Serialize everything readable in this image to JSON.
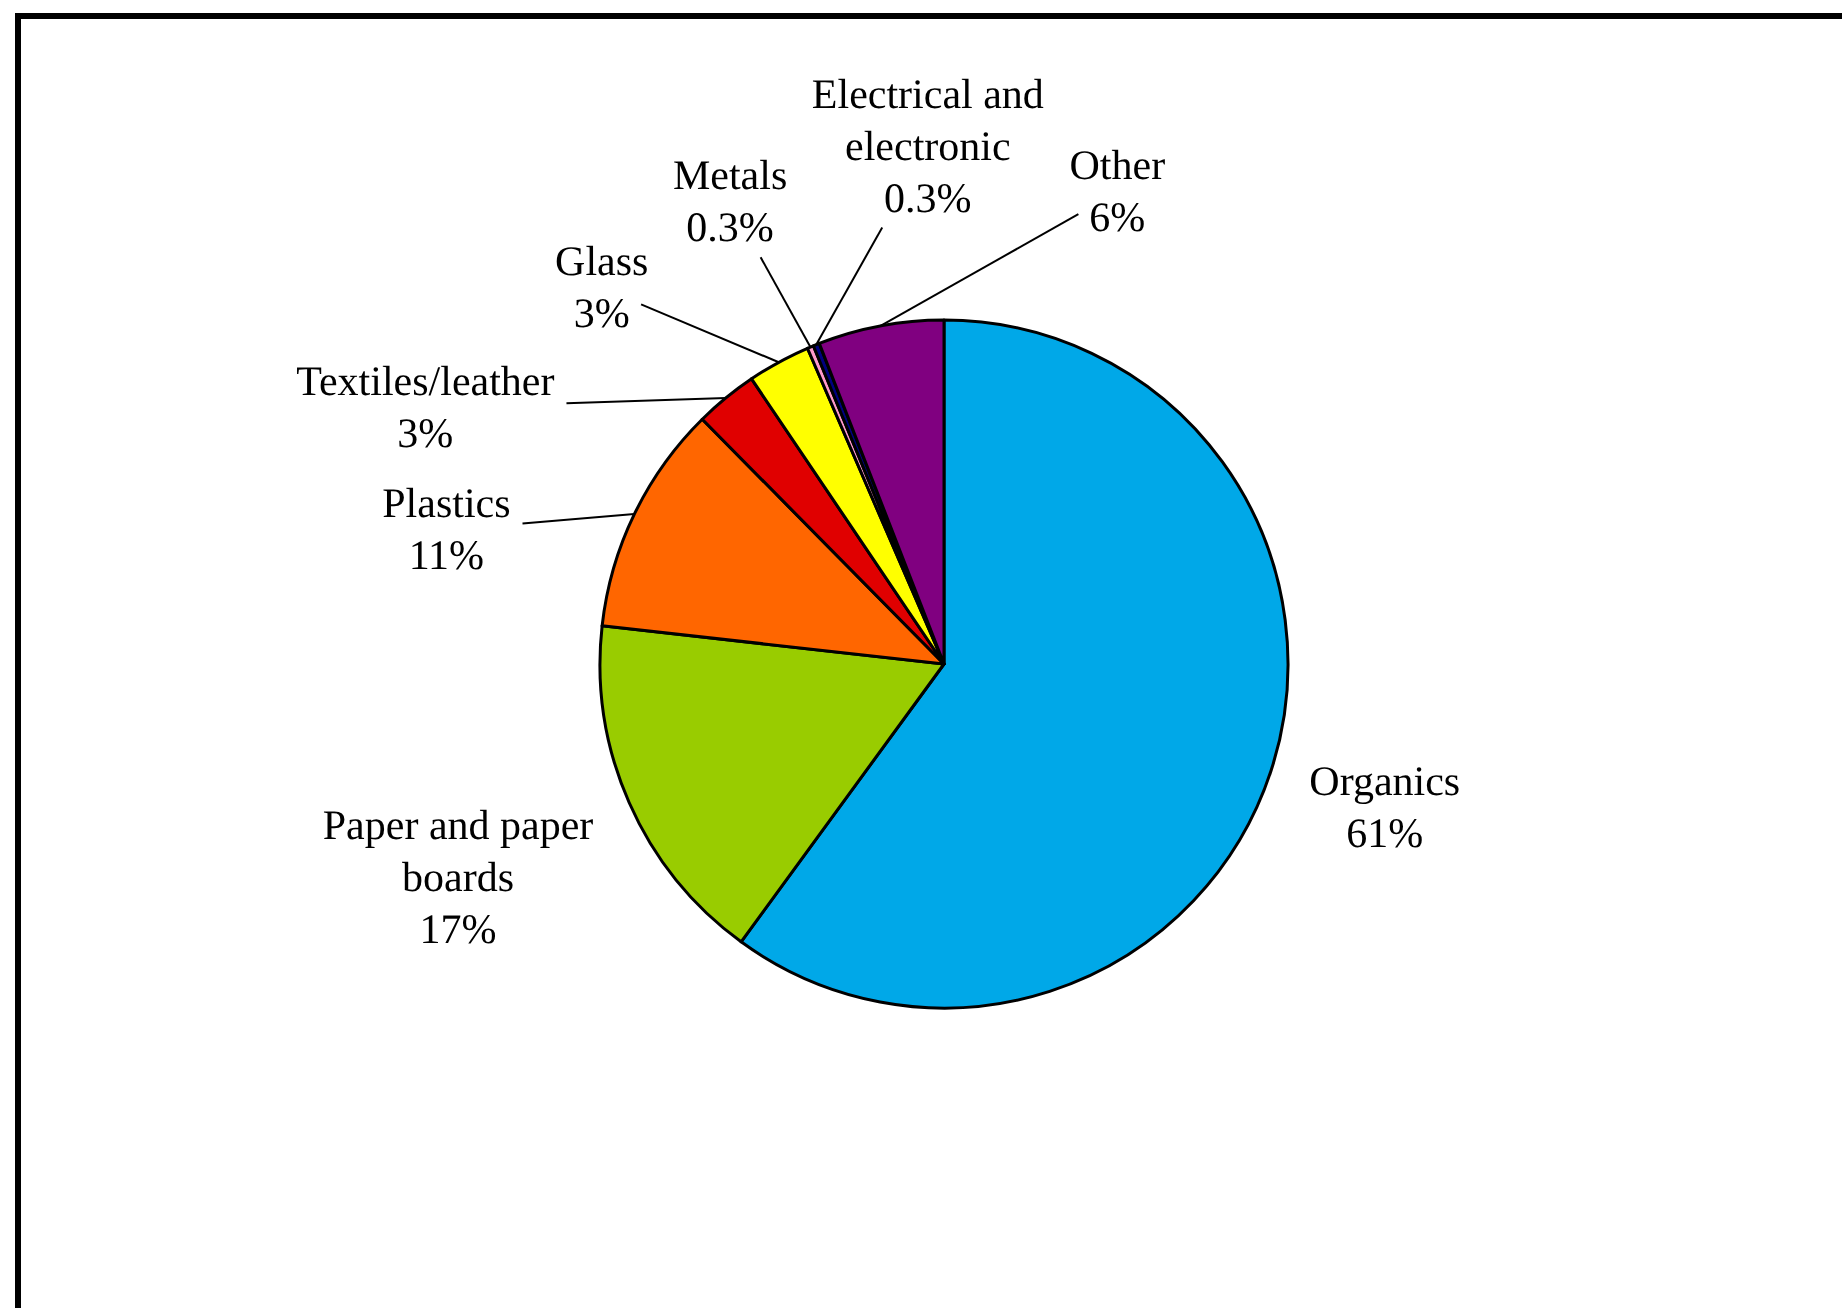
{
  "chart_data": {
    "type": "pie",
    "categories": [
      "Organics",
      "Paper and paper boards",
      "Plastics",
      "Textiles/leather",
      "Glass",
      "Metals",
      "Electrical and electronic",
      "Other"
    ],
    "values": [
      61,
      17,
      11,
      3,
      3,
      0.3,
      0.3,
      6
    ],
    "value_labels": [
      "61%",
      "17%",
      "11%",
      "3%",
      "3%",
      "0.3%",
      "0.3%",
      "6%"
    ],
    "colors": [
      "#00a8e8",
      "#99cc00",
      "#ff6600",
      "#e00000",
      "#ffff00",
      "#ff99cc",
      "#000080",
      "#800080"
    ]
  }
}
